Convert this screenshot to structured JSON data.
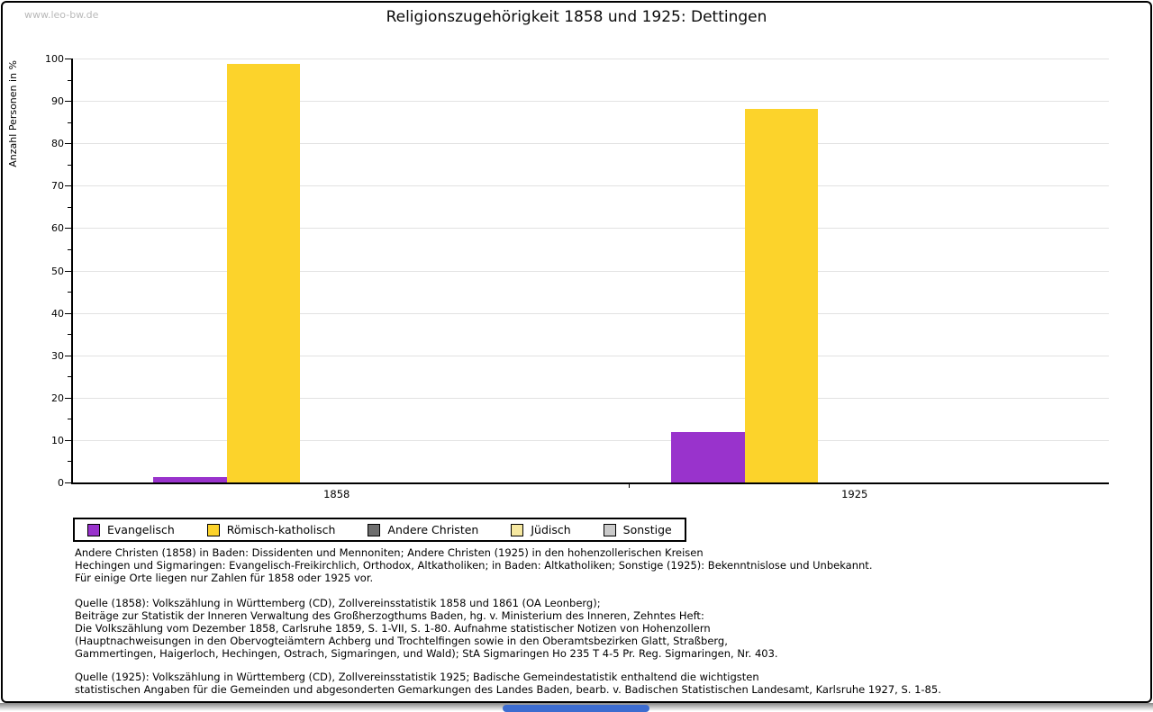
{
  "page": {
    "watermark": "www.leo-bw.de",
    "title": "Religionszugehörigkeit 1858 und 1925: Dettingen"
  },
  "chart_data": {
    "type": "bar",
    "title": "Religionszugehörigkeit 1858 und 1925: Dettingen",
    "xlabel": "",
    "ylabel": "Anzahl Personen in %",
    "ylim": [
      0,
      100
    ],
    "ytick_major": 10,
    "ytick_minor": 5,
    "grid": true,
    "legend_position": "bottom",
    "categories": [
      "1858",
      "1925"
    ],
    "series": [
      {
        "name": "Evangelisch",
        "color": "#9933cc",
        "values": [
          1.3,
          11.8
        ]
      },
      {
        "name": "Römisch-katholisch",
        "color": "#fcd32b",
        "values": [
          98.7,
          88.2
        ]
      },
      {
        "name": "Andere Christen",
        "color": "#6e6e6e",
        "values": [
          0,
          0
        ]
      },
      {
        "name": "Jüdisch",
        "color": "#f6e8a0",
        "values": [
          0,
          0
        ]
      },
      {
        "name": "Sonstige",
        "color": "#cacaca",
        "values": [
          0,
          0
        ]
      }
    ]
  },
  "footnotes": [
    {
      "lines": [
        "Andere Christen (1858) in Baden: Dissidenten und Mennoniten; Andere Christen (1925) in den hohenzollerischen Kreisen",
        "Hechingen und Sigmaringen: Evangelisch-Freikirchlich, Orthodox, Altkatholiken; in Baden: Altkatholiken; Sonstige (1925): Bekenntnislose und Unbekannt.",
        "Für einige Orte liegen nur Zahlen für 1858 oder 1925 vor."
      ]
    },
    {
      "lines": [
        "Quelle (1858): Volkszählung in Württemberg (CD), Zollvereinsstatistik 1858 und 1861 (OA Leonberg);",
        "Beiträge zur Statistik der Inneren Verwaltung des Großherzogthums Baden, hg. v. Ministerium des Inneren, Zehntes Heft:",
        "Die Volkszählung vom Dezember 1858, Carlsruhe 1859, S. 1-VII, S. 1-80. Aufnahme statistischer Notizen von Hohenzollern",
        "(Hauptnachweisungen in den Obervogteiämtern Achberg und Trochtelfingen sowie in den Oberamtsbezirken Glatt, Straßberg,",
        "Gammertingen, Haigerloch, Hechingen, Ostrach, Sigmaringen, und Wald); StA Sigmaringen Ho 235 T 4-5 Pr. Reg. Sigmaringen, Nr. 403."
      ]
    },
    {
      "lines": [
        "Quelle (1925): Volkszählung in Württemberg (CD), Zollvereinsstatistik 1925; Badische Gemeindestatistik enthaltend die wichtigsten",
        "statistischen Angaben für die Gemeinden und abgesonderten Gemarkungen des Landes Baden, bearb. v. Badischen Statistischen Landesamt, Karlsruhe 1927, S. 1-85."
      ]
    }
  ],
  "scrollbar": {
    "thumb_color": "#3c6cd0"
  }
}
